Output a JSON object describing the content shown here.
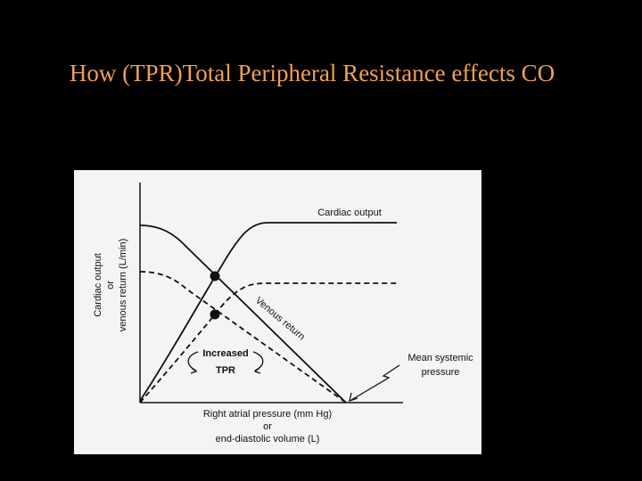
{
  "title": "How (TPR)Total Peripheral Resistance effects CO",
  "figure": {
    "curve_labels": {
      "cardiac_output": "Cardiac output",
      "venous_return": "Venous return"
    },
    "annotation": {
      "lines": [
        "Increased",
        "TPR"
      ]
    },
    "mean_systemic": {
      "lines": [
        "Mean systemic",
        "pressure"
      ]
    },
    "y_axis_label": {
      "lines": [
        "Cardiac output",
        "or",
        "venous return (L/min)"
      ]
    },
    "x_axis_label": {
      "lines": [
        "Right atrial pressure (mm Hg)",
        "or",
        "end-diastolic volume (L)"
      ]
    }
  }
}
